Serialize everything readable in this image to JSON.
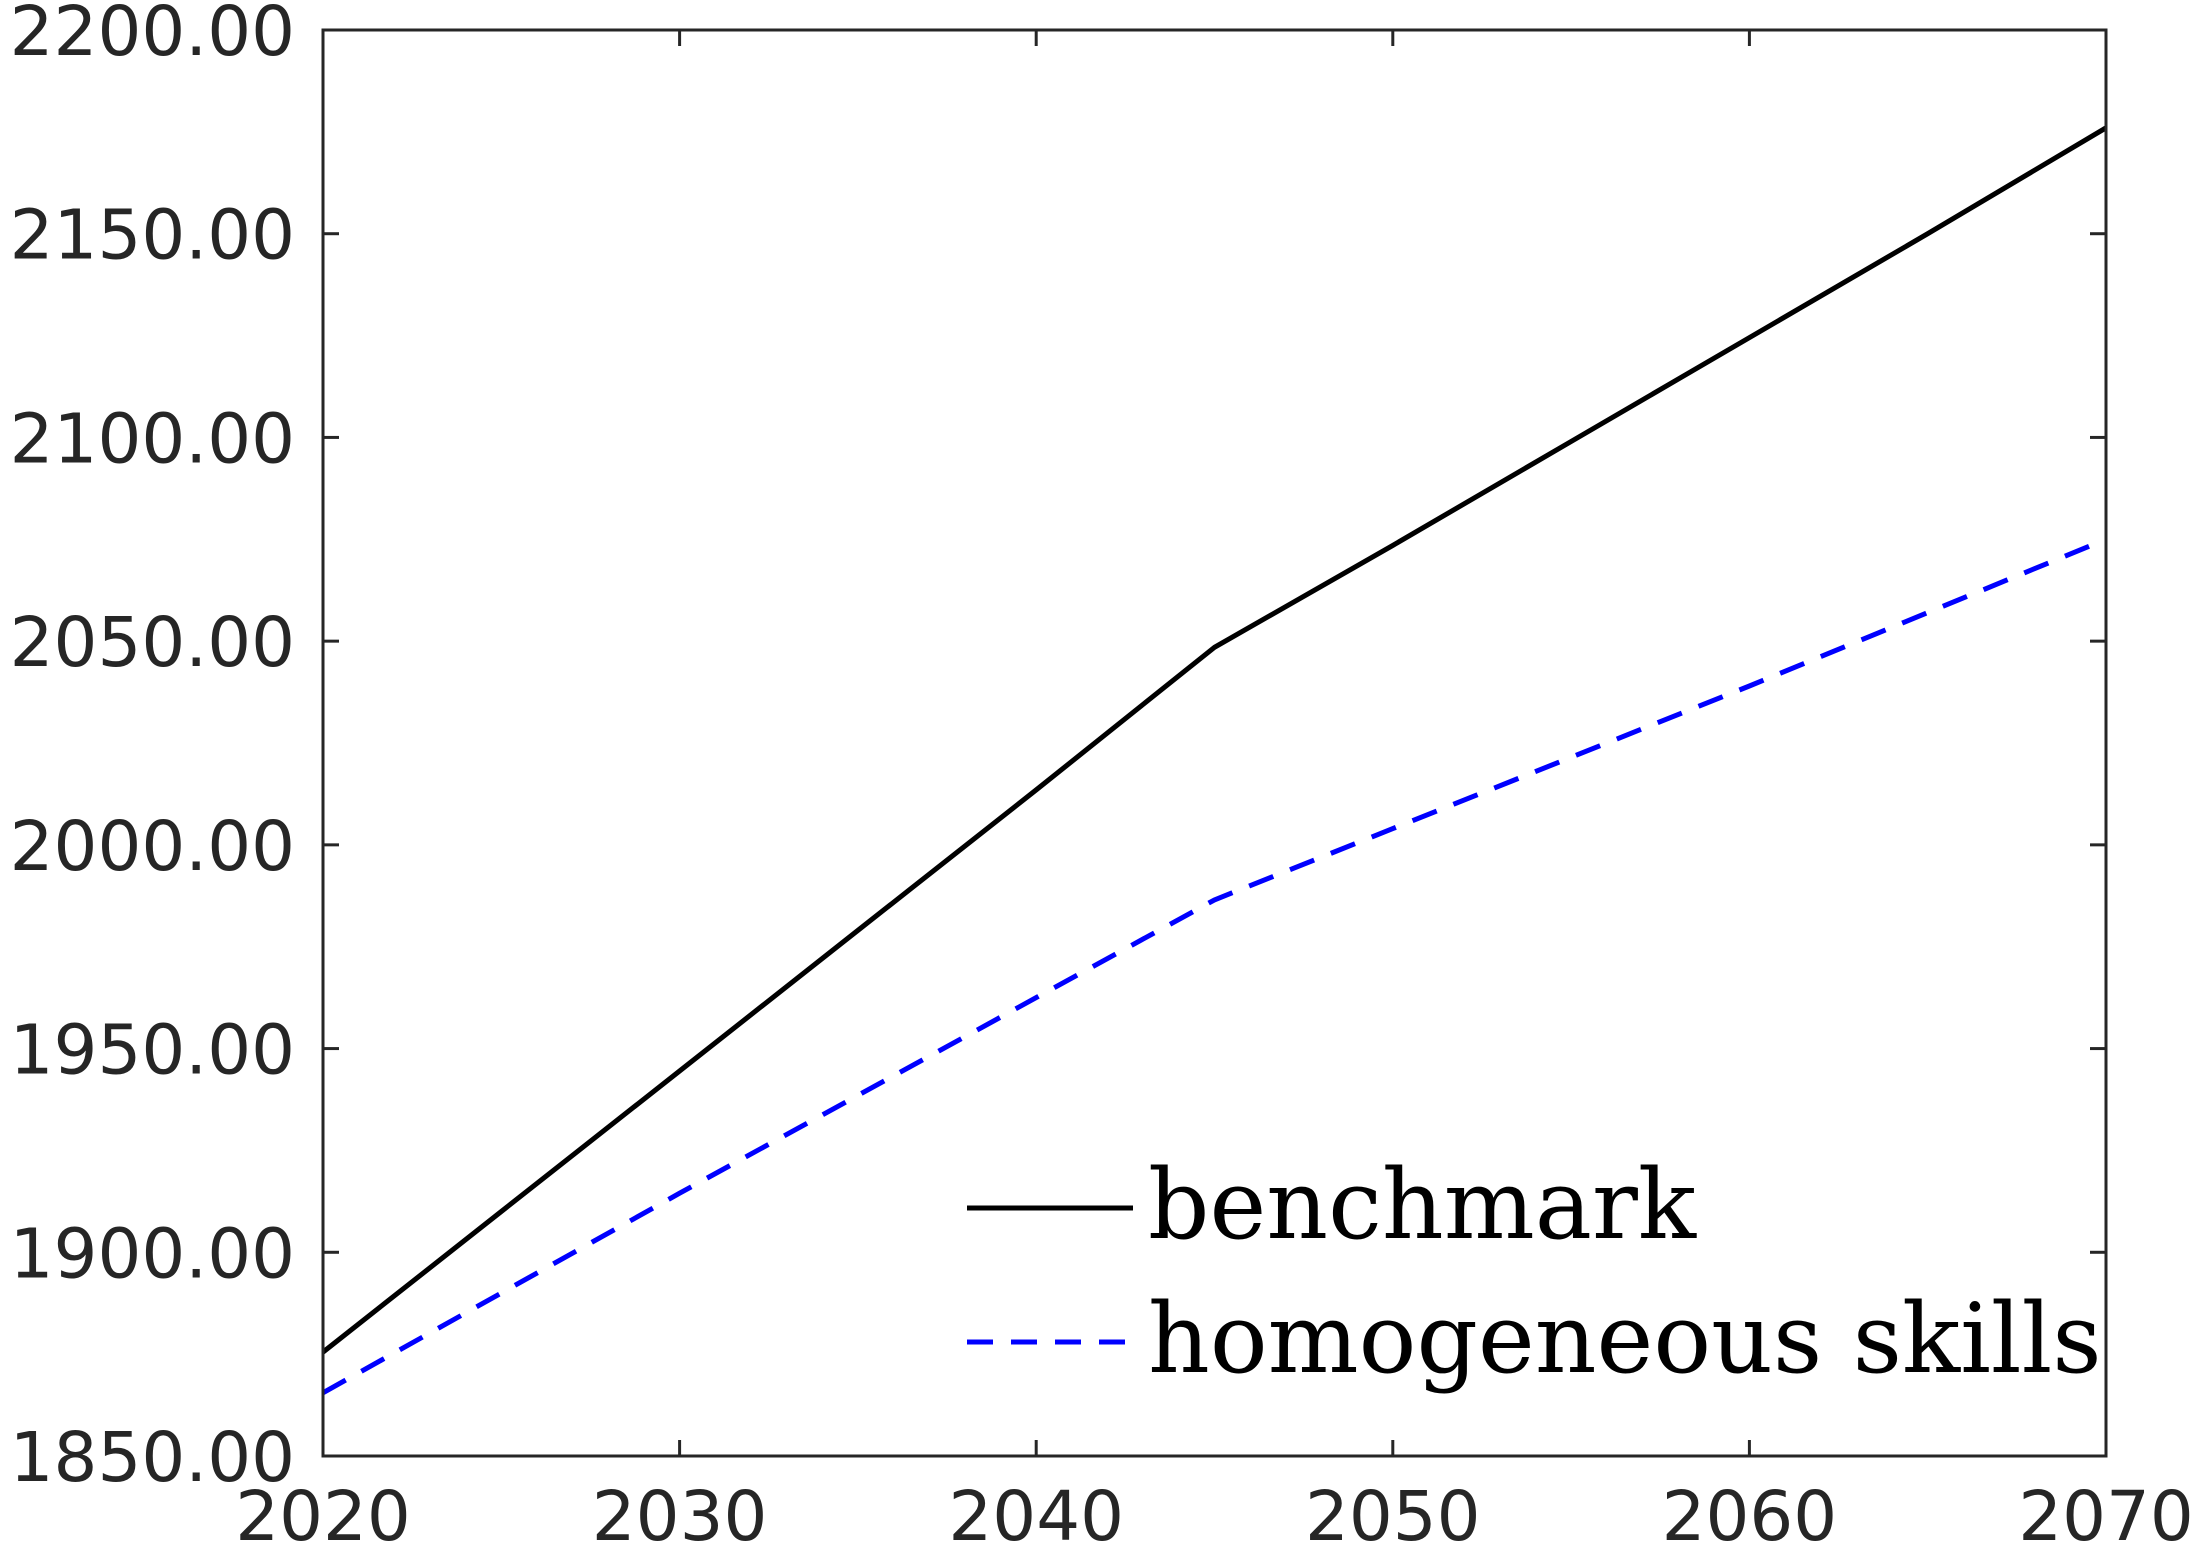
{
  "chart_data": {
    "type": "line",
    "title": "",
    "xlabel": "",
    "ylabel": "",
    "xlim": [
      2020,
      2070
    ],
    "ylim": [
      1850,
      2200
    ],
    "xticks": [
      2020,
      2030,
      2040,
      2050,
      2060,
      2070
    ],
    "xtick_labels": [
      "2020",
      "2030",
      "2040",
      "2050",
      "2060",
      "2070"
    ],
    "yticks": [
      1850,
      1900,
      1950,
      2000,
      2050,
      2100,
      2150,
      2200
    ],
    "ytick_labels": [
      "1850.00",
      "1900.00",
      "1950.00",
      "2000.00",
      "2050.00",
      "2100.00",
      "2150.00",
      "2200.00"
    ],
    "grid": false,
    "legend_position": "bottom-right",
    "series": [
      {
        "name": "benchmark",
        "color": "#000000",
        "style": "solid",
        "x": [
          2020,
          2025,
          2030,
          2035,
          2040,
          2045,
          2050,
          2055,
          2060,
          2065,
          2070
        ],
        "y": [
          1875.5,
          1910.0,
          1944.5,
          1979.0,
          2013.5,
          2048.5,
          2073.5,
          2099.0,
          2124.5,
          2150.0,
          2176.0
        ]
      },
      {
        "name": "homogeneous skills",
        "color": "#0000ff",
        "style": "dashed",
        "x": [
          2020,
          2025,
          2030,
          2035,
          2040,
          2045,
          2050,
          2055,
          2060,
          2065,
          2070
        ],
        "y": [
          1865.5,
          1890.0,
          1914.5,
          1938.5,
          1962.5,
          1986.5,
          2004.0,
          2021.5,
          2039.0,
          2057.0,
          2075.0
        ]
      }
    ]
  }
}
